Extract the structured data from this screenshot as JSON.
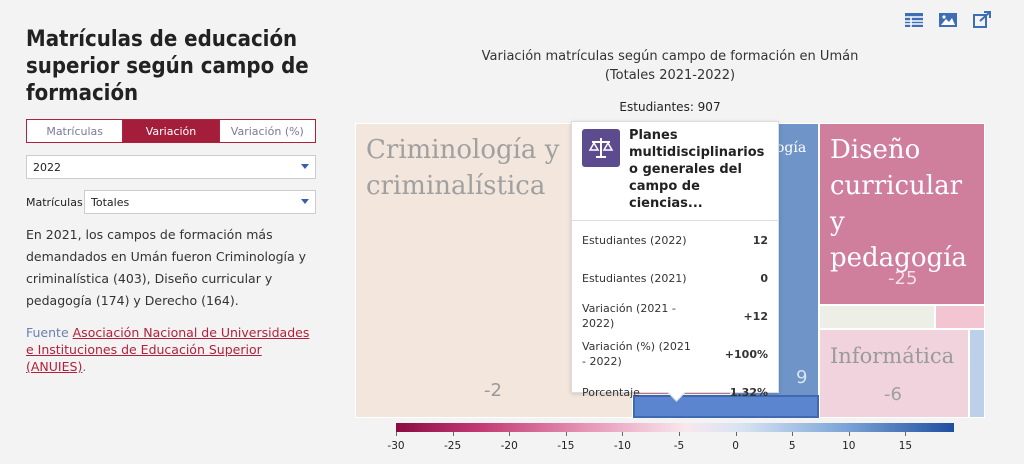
{
  "sidebar": {
    "title": "Matrículas de educación superior según campo de formación",
    "tabs": [
      "Matrículas",
      "Variación",
      "Variación (%)"
    ],
    "active_tab": 1,
    "year_select": "2022",
    "matriculas_label": "Matrículas",
    "matriculas_select": "Totales",
    "description": "En 2021, los campos de formación más demandados en Umán fueron Criminología y criminalística (403), Diseño curricular y pedagogía (174) y Derecho (164).",
    "source_prefix": "Fuente",
    "source_link": "Asociación Nacional de Universidades e Instituciones de Educación Superior (ANUIES)",
    "source_suffix": "."
  },
  "toolbar": {
    "icons": [
      "table-icon",
      "image-icon",
      "share-icon"
    ]
  },
  "chart_data": {
    "type": "treemap",
    "title_line1": "Variación matrículas según campo de formación en Umán",
    "title_line2": "(Totales 2021-2022)",
    "total": "Estudiantes: 907",
    "cells": [
      {
        "label": "Criminología y criminalística",
        "value": "-2",
        "color": "#f3e6dc"
      },
      {
        "label": "ogía",
        "value": "9",
        "color": "#6e94c8"
      },
      {
        "label": "Diseño curricular y pedagogía",
        "value": "-25",
        "color": "#cf7e9c"
      },
      {
        "label": "Informática",
        "value": "-6",
        "color": "#f0d3dc"
      }
    ],
    "legend_ticks": [
      "-30",
      "-25",
      "-20",
      "-15",
      "-10",
      "-5",
      "0",
      "5",
      "10",
      "15"
    ]
  },
  "tooltip": {
    "name": "Planes multidisciplinarios o generales del campo de ciencias...",
    "rows": [
      {
        "k": "Estudiantes (2022)",
        "v": "12"
      },
      {
        "k": "Estudiantes (2021)",
        "v": "0"
      },
      {
        "k": "Variación (2021 - 2022)",
        "v": "+12"
      },
      {
        "k": "Variación (%) (2021 - 2022)",
        "v": "+100%"
      },
      {
        "k": "Porcentaje",
        "v": "1.32%"
      }
    ]
  }
}
